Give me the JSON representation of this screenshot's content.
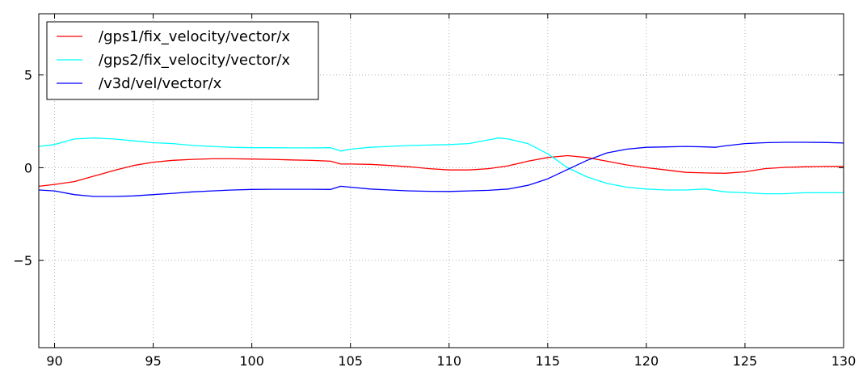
{
  "chart_data": {
    "type": "line",
    "title": "",
    "xlabel": "",
    "ylabel": "",
    "xlim": [
      89.2,
      130
    ],
    "ylim": [
      -9.7,
      8.3
    ],
    "grid": true,
    "legend_position": "top-left",
    "x_ticks": [
      {
        "value": 90,
        "label": "90"
      },
      {
        "value": 95,
        "label": "95"
      },
      {
        "value": 100,
        "label": "100"
      },
      {
        "value": 105,
        "label": "105"
      },
      {
        "value": 110,
        "label": "110"
      },
      {
        "value": 115,
        "label": "115"
      },
      {
        "value": 120,
        "label": "120"
      },
      {
        "value": 125,
        "label": "125"
      },
      {
        "value": 130,
        "label": "130"
      }
    ],
    "y_ticks": [
      {
        "value": 5,
        "label": "5"
      },
      {
        "value": 0,
        "label": "0"
      },
      {
        "value": -5,
        "label": "−5"
      }
    ],
    "series": [
      {
        "name": "/gps1/fix_velocity/vector/x",
        "color": "#ff0000",
        "x": [
          89.2,
          90,
          91,
          92,
          93,
          94,
          95,
          96,
          97,
          98,
          99,
          100,
          101,
          102,
          103,
          104,
          104.5,
          105,
          106,
          107,
          108,
          109,
          110,
          111,
          112,
          113,
          114,
          115,
          116,
          117,
          118,
          119,
          120,
          121,
          122,
          123,
          124,
          125,
          126,
          127,
          128,
          129,
          130
        ],
        "y": [
          -1.0,
          -0.9,
          -0.75,
          -0.45,
          -0.15,
          0.12,
          0.3,
          0.4,
          0.45,
          0.48,
          0.48,
          0.47,
          0.45,
          0.42,
          0.4,
          0.35,
          0.2,
          0.2,
          0.18,
          0.12,
          0.05,
          -0.05,
          -0.12,
          -0.12,
          -0.05,
          0.1,
          0.35,
          0.55,
          0.65,
          0.55,
          0.35,
          0.15,
          0.0,
          -0.12,
          -0.25,
          -0.28,
          -0.3,
          -0.22,
          -0.05,
          0.02,
          0.05,
          0.07,
          0.07
        ]
      },
      {
        "name": "/gps2/fix_velocity/vector/x",
        "color": "#00ffff",
        "x": [
          89.2,
          90,
          91,
          92,
          93,
          94,
          95,
          96,
          97,
          98,
          99,
          100,
          101,
          102,
          103,
          104,
          104.5,
          105,
          106,
          107,
          108,
          109,
          110,
          111,
          112,
          112.5,
          113,
          114,
          115,
          116,
          117,
          118,
          119,
          120,
          121,
          122,
          123,
          124,
          125,
          126,
          127,
          128,
          129,
          130
        ],
        "y": [
          1.15,
          1.25,
          1.55,
          1.6,
          1.55,
          1.45,
          1.35,
          1.3,
          1.2,
          1.15,
          1.1,
          1.08,
          1.08,
          1.07,
          1.07,
          1.08,
          0.9,
          1.0,
          1.1,
          1.15,
          1.2,
          1.22,
          1.25,
          1.3,
          1.5,
          1.6,
          1.55,
          1.3,
          0.75,
          0.0,
          -0.5,
          -0.85,
          -1.05,
          -1.15,
          -1.2,
          -1.2,
          -1.15,
          -1.3,
          -1.35,
          -1.4,
          -1.4,
          -1.35,
          -1.35,
          -1.35
        ]
      },
      {
        "name": "/v3d/vel/vector/x",
        "color": "#0000ff",
        "x": [
          89.2,
          90,
          91,
          92,
          93,
          94,
          95,
          96,
          97,
          98,
          99,
          100,
          101,
          102,
          103,
          104,
          104.5,
          105,
          106,
          107,
          108,
          109,
          110,
          111,
          112,
          113,
          114,
          115,
          116,
          117,
          118,
          119,
          120,
          121,
          122,
          123,
          123.5,
          124,
          125,
          126,
          127,
          128,
          129,
          130
        ],
        "y": [
          -1.2,
          -1.25,
          -1.45,
          -1.55,
          -1.55,
          -1.52,
          -1.45,
          -1.38,
          -1.3,
          -1.25,
          -1.2,
          -1.17,
          -1.16,
          -1.16,
          -1.16,
          -1.17,
          -1.0,
          -1.05,
          -1.15,
          -1.2,
          -1.25,
          -1.27,
          -1.28,
          -1.25,
          -1.22,
          -1.15,
          -0.95,
          -0.6,
          -0.1,
          0.4,
          0.8,
          1.0,
          1.1,
          1.12,
          1.15,
          1.12,
          1.1,
          1.18,
          1.3,
          1.35,
          1.37,
          1.37,
          1.36,
          1.33
        ]
      }
    ]
  }
}
